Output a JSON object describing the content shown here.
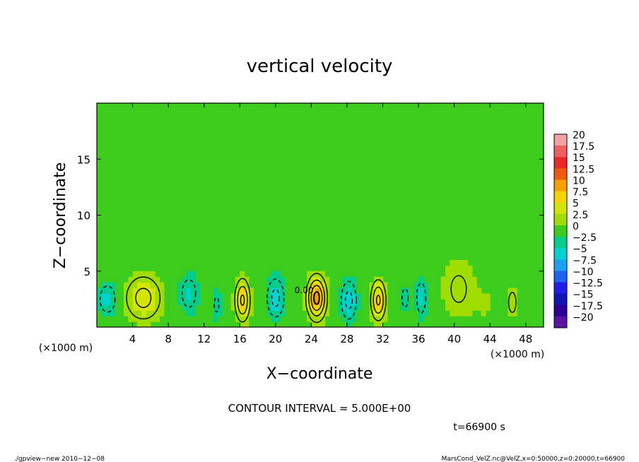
{
  "chart_data": {
    "type": "heatmap",
    "title": "vertical velocity",
    "xlabel": "X−coordinate",
    "ylabel": "Z−coordinate",
    "x_unit": "(×1000 m)",
    "y_unit": "(×1000 m)",
    "xlim": [
      0,
      50
    ],
    "ylim": [
      0,
      20
    ],
    "x_ticks": [
      "4",
      "8",
      "12",
      "16",
      "20",
      "24",
      "28",
      "32",
      "36",
      "40",
      "44",
      "48"
    ],
    "y_ticks": [
      "5",
      "10",
      "15"
    ],
    "x_tick_values": [
      4,
      8,
      12,
      16,
      20,
      24,
      28,
      32,
      36,
      40,
      44,
      48
    ],
    "y_tick_values": [
      5,
      10,
      15
    ],
    "colorbar": {
      "labels": [
        "20",
        "17.5",
        "15",
        "12.5",
        "10",
        "7.5",
        "5",
        "2.5",
        "0",
        "−2.5",
        "−5",
        "−7.5",
        "−10",
        "−12.5",
        "−15",
        "−17.5",
        "−20"
      ],
      "colors": [
        "#f2a0a0",
        "#ee6060",
        "#ea2a2a",
        "#ee5a10",
        "#f5a000",
        "#f5d200",
        "#d2e600",
        "#a0dc00",
        "#3ccc1e",
        "#00cc8c",
        "#00d2d2",
        "#1ea0f0",
        "#1e64f0",
        "#1e1ee6",
        "#1414b4",
        "#280096",
        "#5a14a0"
      ]
    },
    "features": [
      {
        "x": 1.2,
        "z": 2.5,
        "w": -5,
        "sx": 1.0,
        "sz": 1.4
      },
      {
        "x": 5.2,
        "z": 2.6,
        "w": 6,
        "sx": 2.0,
        "sz": 2.0
      },
      {
        "x": 10.3,
        "z": 3.0,
        "w": -4,
        "sx": 1.1,
        "sz": 1.8
      },
      {
        "x": 13.4,
        "z": 2.0,
        "w": -3,
        "sx": 0.6,
        "sz": 1.5
      },
      {
        "x": 16.3,
        "z": 2.4,
        "w": 8,
        "sx": 0.8,
        "sz": 1.8
      },
      {
        "x": 20.0,
        "z": 2.6,
        "w": -6,
        "sx": 1.0,
        "sz": 1.8
      },
      {
        "x": 24.6,
        "z": 2.6,
        "w": 11,
        "sx": 1.0,
        "sz": 1.8
      },
      {
        "x": 28.2,
        "z": 2.4,
        "w": -6,
        "sx": 0.9,
        "sz": 1.8
      },
      {
        "x": 31.5,
        "z": 2.4,
        "w": 8,
        "sx": 0.8,
        "sz": 1.7
      },
      {
        "x": 34.5,
        "z": 2.6,
        "w": -4,
        "sx": 0.5,
        "sz": 1.2
      },
      {
        "x": 36.3,
        "z": 2.6,
        "w": -5,
        "sx": 0.6,
        "sz": 1.6
      },
      {
        "x": 40.5,
        "z": 3.4,
        "w": 3,
        "sx": 2.0,
        "sz": 2.8
      },
      {
        "x": 46.5,
        "z": 2.2,
        "w": 4,
        "sx": 0.6,
        "sz": 1.3
      },
      {
        "x": 43.5,
        "z": 2.0,
        "w": 1.5,
        "sx": 1.2,
        "sz": 1.4
      }
    ]
  },
  "annotations": {
    "contour_interval": "CONTOUR INTERVAL = 5.000E+00",
    "time": "t=66900 s",
    "footer_left": "./gpview−new   2010−12−08",
    "footer_right": "MarsCond_VelZ.nc@VelZ,x=0:50000,z=0:20000,t=66900",
    "zero_label": "0.00"
  }
}
